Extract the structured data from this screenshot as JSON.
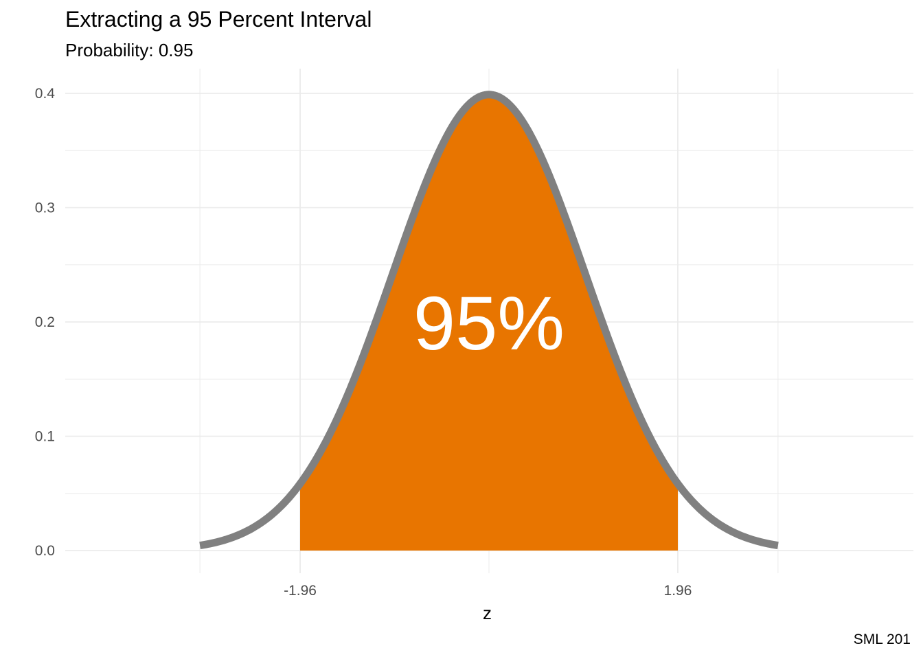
{
  "chart_data": {
    "type": "area",
    "title": "Extracting a 95 Percent Interval",
    "subtitle": "Probability: 0.95",
    "xlabel": "z",
    "ylabel": "",
    "caption": "SML 201",
    "distribution": "standard normal density",
    "xlim": [
      -3,
      3
    ],
    "ylim": [
      0,
      0.4
    ],
    "x_ticks": [
      -1.96,
      1.96
    ],
    "x_tick_labels": [
      "-1.96",
      "1.96"
    ],
    "y_ticks": [
      0.0,
      0.1,
      0.2,
      0.3,
      0.4
    ],
    "y_tick_labels": [
      "0.0",
      "0.1",
      "0.2",
      "0.3",
      "0.4"
    ],
    "shaded_interval": [
      -1.96,
      1.96
    ],
    "probability": 0.95,
    "annotation": "95%",
    "grid": true,
    "colors": {
      "fill": "#E87500",
      "curve": "#808080",
      "annotation": "#ffffff",
      "grid": "#ebebeb"
    }
  }
}
